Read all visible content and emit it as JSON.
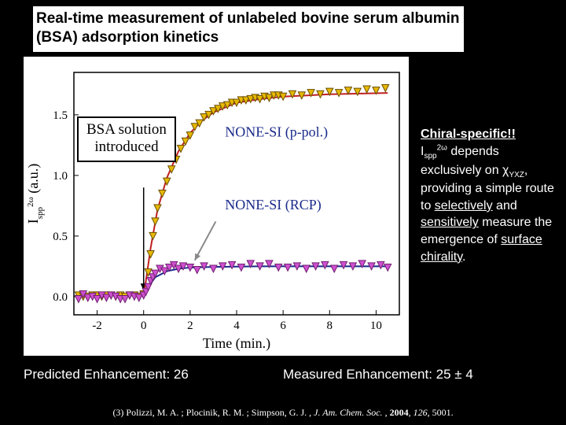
{
  "title": "Real-time measurement of unlabeled bovine serum albumin (BSA) adsorption kinetics",
  "annotation": {
    "line1": "BSA solution",
    "line2": "introduced"
  },
  "chart": {
    "type": "scatter+line",
    "background_color": "#ffffff",
    "axis_color": "#000000",
    "xlabel": "Time (min.)",
    "ylabel": "I_spp^2ω (a.u.)",
    "label_fontsize": 18,
    "tick_fontsize": 15,
    "xlim": [
      -3,
      11
    ],
    "ylim": [
      -0.15,
      1.85
    ],
    "xticks": [
      -2,
      0,
      2,
      4,
      6,
      8,
      10
    ],
    "yticks": [
      0.0,
      0.5,
      1.0,
      1.5
    ],
    "series": [
      {
        "name": "NONE-SI (p-pol.)",
        "label_position": [
          3.5,
          1.32
        ],
        "label_color": "#1a2a8a",
        "marker": "triangle-down",
        "marker_color": "#e6b800",
        "marker_border": "#6b4f00",
        "marker_size": 9,
        "fit_line_color": "#c02020",
        "fit_line_width": 2,
        "data": [
          [
            -2.8,
            0.01
          ],
          [
            -2.6,
            0.0
          ],
          [
            -2.4,
            0.0
          ],
          [
            -2.2,
            0.01
          ],
          [
            -2.0,
            0.01
          ],
          [
            -1.8,
            0.0
          ],
          [
            -1.6,
            0.01
          ],
          [
            -1.4,
            0.01
          ],
          [
            -1.2,
            0.0
          ],
          [
            -1.0,
            0.01
          ],
          [
            -0.8,
            0.0
          ],
          [
            -0.6,
            0.01
          ],
          [
            -0.4,
            0.01
          ],
          [
            -0.2,
            0.0
          ],
          [
            0.0,
            0.02
          ],
          [
            0.2,
            0.2
          ],
          [
            0.3,
            0.35
          ],
          [
            0.4,
            0.5
          ],
          [
            0.5,
            0.62
          ],
          [
            0.6,
            0.73
          ],
          [
            0.8,
            0.85
          ],
          [
            1.0,
            0.95
          ],
          [
            1.2,
            1.05
          ],
          [
            1.4,
            1.13
          ],
          [
            1.6,
            1.22
          ],
          [
            1.8,
            1.28
          ],
          [
            2.0,
            1.33
          ],
          [
            2.2,
            1.4
          ],
          [
            2.4,
            1.43
          ],
          [
            2.6,
            1.48
          ],
          [
            2.8,
            1.5
          ],
          [
            3.0,
            1.53
          ],
          [
            3.2,
            1.55
          ],
          [
            3.4,
            1.57
          ],
          [
            3.6,
            1.58
          ],
          [
            3.8,
            1.6
          ],
          [
            4.0,
            1.6
          ],
          [
            4.2,
            1.62
          ],
          [
            4.4,
            1.62
          ],
          [
            4.6,
            1.63
          ],
          [
            4.8,
            1.64
          ],
          [
            5.0,
            1.63
          ],
          [
            5.2,
            1.65
          ],
          [
            5.4,
            1.64
          ],
          [
            5.6,
            1.66
          ],
          [
            5.8,
            1.66
          ],
          [
            6.0,
            1.65
          ],
          [
            6.4,
            1.67
          ],
          [
            6.8,
            1.66
          ],
          [
            7.2,
            1.68
          ],
          [
            7.6,
            1.67
          ],
          [
            8.0,
            1.69
          ],
          [
            8.4,
            1.68
          ],
          [
            8.8,
            1.7
          ],
          [
            9.2,
            1.69
          ],
          [
            9.6,
            1.71
          ],
          [
            10.0,
            1.7
          ],
          [
            10.4,
            1.72
          ]
        ],
        "fit": [
          [
            0.0,
            0.0
          ],
          [
            0.3,
            0.4
          ],
          [
            0.6,
            0.72
          ],
          [
            1.0,
            0.98
          ],
          [
            1.5,
            1.2
          ],
          [
            2.0,
            1.35
          ],
          [
            2.5,
            1.45
          ],
          [
            3.0,
            1.52
          ],
          [
            4.0,
            1.6
          ],
          [
            5.0,
            1.63
          ],
          [
            6.0,
            1.65
          ],
          [
            8.0,
            1.67
          ],
          [
            10.5,
            1.68
          ]
        ]
      },
      {
        "name": "NONE-SI (RCP)",
        "label_position": [
          3.5,
          0.72
        ],
        "label_color": "#1a2a8a",
        "marker": "triangle-down",
        "marker_color": "#d050d0",
        "marker_border": "#702070",
        "marker_size": 9,
        "fit_line_color": "#1a2a8a",
        "fit_line_width": 2,
        "data": [
          [
            -2.8,
            -0.02
          ],
          [
            -2.6,
            0.02
          ],
          [
            -2.4,
            -0.01
          ],
          [
            -2.2,
            0.0
          ],
          [
            -2.0,
            -0.02
          ],
          [
            -1.8,
            0.01
          ],
          [
            -1.6,
            -0.01
          ],
          [
            -1.4,
            0.01
          ],
          [
            -1.2,
            0.0
          ],
          [
            -1.0,
            -0.02
          ],
          [
            -0.8,
            -0.02
          ],
          [
            -0.6,
            0.01
          ],
          [
            -0.4,
            0.0
          ],
          [
            -0.2,
            -0.01
          ],
          [
            0.0,
            0.01
          ],
          [
            0.1,
            0.04
          ],
          [
            0.2,
            0.08
          ],
          [
            0.3,
            0.13
          ],
          [
            0.4,
            0.16
          ],
          [
            0.5,
            0.19
          ],
          [
            0.7,
            0.23
          ],
          [
            0.9,
            0.21
          ],
          [
            1.1,
            0.24
          ],
          [
            1.3,
            0.26
          ],
          [
            1.5,
            0.23
          ],
          [
            1.7,
            0.25
          ],
          [
            2.0,
            0.24
          ],
          [
            2.3,
            0.22
          ],
          [
            2.6,
            0.25
          ],
          [
            3.0,
            0.23
          ],
          [
            3.4,
            0.25
          ],
          [
            3.8,
            0.26
          ],
          [
            4.2,
            0.24
          ],
          [
            4.6,
            0.27
          ],
          [
            5.0,
            0.25
          ],
          [
            5.4,
            0.27
          ],
          [
            5.8,
            0.24
          ],
          [
            6.2,
            0.24
          ],
          [
            6.6,
            0.25
          ],
          [
            7.0,
            0.23
          ],
          [
            7.4,
            0.25
          ],
          [
            7.8,
            0.26
          ],
          [
            8.2,
            0.23
          ],
          [
            8.6,
            0.26
          ],
          [
            9.0,
            0.25
          ],
          [
            9.4,
            0.27
          ],
          [
            9.8,
            0.25
          ],
          [
            10.2,
            0.26
          ],
          [
            10.5,
            0.24
          ]
        ],
        "fit": [
          [
            0.0,
            0.0
          ],
          [
            0.2,
            0.08
          ],
          [
            0.5,
            0.16
          ],
          [
            1.0,
            0.21
          ],
          [
            1.5,
            0.23
          ],
          [
            2.0,
            0.24
          ],
          [
            3.0,
            0.245
          ],
          [
            5.0,
            0.25
          ],
          [
            8.0,
            0.25
          ],
          [
            10.5,
            0.25
          ]
        ]
      }
    ],
    "arrow_bsa": {
      "from": [
        0.0,
        0.9
      ],
      "to": [
        0.0,
        0.05
      ],
      "color": "#000000"
    },
    "arrow_rcp": {
      "from": [
        3.1,
        0.62
      ],
      "to": [
        2.2,
        0.3
      ],
      "color": "#888888"
    }
  },
  "side_note": {
    "headline": "Chiral-specific!!",
    "body_pre": "I",
    "body_sub1": "spp",
    "body_sup1": "2ω",
    "body_mid": " depends exclusively on χ",
    "body_sub2": "YXZ",
    "body_rest": ", providing a simple route to ",
    "u1": "selectively",
    "body_and": " and ",
    "u2": "sensitively",
    "body_tail": " measure the emergence of ",
    "u3": "surface chirality",
    "body_end": "."
  },
  "footer": {
    "predicted": "Predicted Enhancement: 26",
    "measured": "Measured Enhancement: 25 ± 4"
  },
  "citation": {
    "prefix": "(3) Polizzi, M. A. ; Plocinik, R. M. ; Simpson, G. J. , ",
    "journal": "J. Am. Chem. Soc.",
    "mid": " , ",
    "year": "2004",
    "mid2": ", ",
    "volume": "126",
    "suffix": ", 5001."
  }
}
